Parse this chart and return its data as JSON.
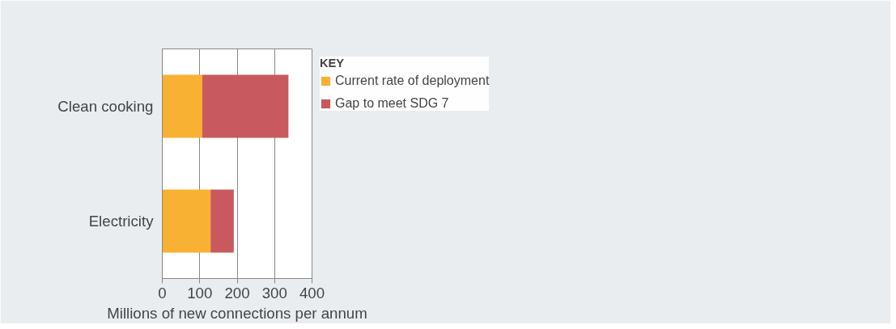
{
  "chart_data": {
    "type": "bar",
    "orientation": "horizontal",
    "stacked": true,
    "categories": [
      "Clean cooking",
      "Electricity"
    ],
    "series": [
      {
        "name": "Current rate of deployment",
        "color": "#f8b133",
        "values": [
          107,
          129
        ]
      },
      {
        "name": "Gap to meet SDG 7",
        "color": "#c85a5f",
        "values": [
          230,
          62
        ]
      }
    ],
    "xlabel": "Millions of new connections per annum",
    "xlim": [
      0,
      400
    ],
    "xticks": [
      0,
      100,
      200,
      300,
      400
    ],
    "grid": "x",
    "legend": "right",
    "legend_title": "KEY"
  }
}
